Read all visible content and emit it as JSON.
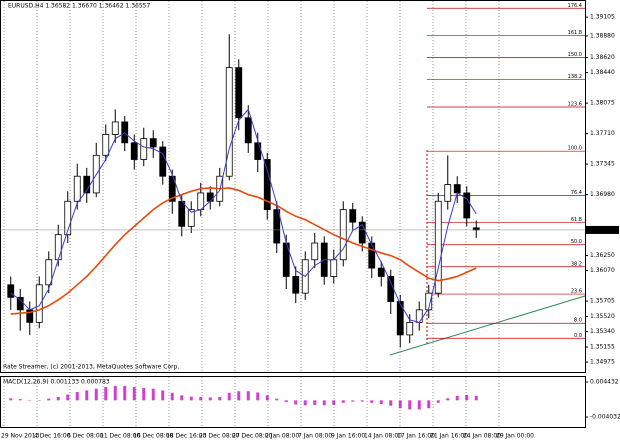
{
  "chart_data": [
    {
      "type": "candlestick",
      "title": "EURUSD,H4 1.36582 1.36670 1.36462 1.36557",
      "annotation": "Rate Streamer, (c) 2001-2013, MetaQuotes Software Corp.",
      "x_tick_labels": [
        "29 Nov 2013",
        "4 Dec 16:00",
        "6 Dec 08:00",
        "11 Dec 08:00",
        "16 Dec 08:00",
        "18 Dec 16:00",
        "23 Dec 08:00",
        "27 Dec 08:00",
        "2 Jan 08:00",
        "7 Jan 08:00",
        "9 Jan 16:00",
        "14 Jan 08:00",
        "17 Jan 16:00",
        "21 Jan 16:00",
        "24 Jan 08:00",
        "29 Jan 00:00"
      ],
      "open": [
        1.359,
        1.3575,
        1.356,
        1.3545,
        1.359,
        1.362,
        1.365,
        1.369,
        1.372,
        1.37,
        1.3745,
        1.377,
        1.3785,
        1.376,
        1.374,
        1.3765,
        1.3755,
        1.372,
        1.369,
        1.366,
        1.368,
        1.37,
        1.369,
        1.372,
        1.385,
        1.379,
        1.376,
        1.374,
        1.368,
        1.364,
        1.36,
        1.358,
        1.362,
        1.364,
        1.36,
        1.362,
        1.368,
        1.3665,
        1.364,
        1.361,
        1.36,
        1.357,
        1.353,
        1.3545,
        1.356,
        1.358,
        1.369,
        1.371,
        1.37,
        1.36582
      ],
      "high": [
        1.36,
        1.3585,
        1.357,
        1.36,
        1.363,
        1.3662,
        1.3702,
        1.3735,
        1.373,
        1.376,
        1.3782,
        1.38,
        1.3792,
        1.377,
        1.3778,
        1.3775,
        1.3762,
        1.3728,
        1.3698,
        1.369,
        1.3712,
        1.3708,
        1.373,
        1.389,
        1.386,
        1.3805,
        1.3772,
        1.3748,
        1.369,
        1.365,
        1.3612,
        1.363,
        1.3652,
        1.3648,
        1.3632,
        1.369,
        1.3688,
        1.3672,
        1.3648,
        1.3618,
        1.3608,
        1.3578,
        1.3555,
        1.357,
        1.359,
        1.37,
        1.3745,
        1.372,
        1.3708,
        1.3667
      ],
      "low": [
        1.356,
        1.3535,
        1.353,
        1.3538,
        1.358,
        1.3612,
        1.364,
        1.368,
        1.3688,
        1.3695,
        1.3738,
        1.376,
        1.375,
        1.3728,
        1.3732,
        1.3742,
        1.371,
        1.3675,
        1.3648,
        1.3652,
        1.3672,
        1.368,
        1.3684,
        1.3715,
        1.3775,
        1.3748,
        1.3725,
        1.3668,
        1.3628,
        1.3585,
        1.3568,
        1.3572,
        1.361,
        1.359,
        1.3592,
        1.3612,
        1.3655,
        1.363,
        1.3598,
        1.3588,
        1.3555,
        1.3515,
        1.352,
        1.3535,
        1.355,
        1.3575,
        1.368,
        1.3688,
        1.366,
        1.36462
      ],
      "close": [
        1.3575,
        1.356,
        1.3545,
        1.359,
        1.362,
        1.365,
        1.369,
        1.372,
        1.37,
        1.3745,
        1.377,
        1.3785,
        1.376,
        1.374,
        1.3765,
        1.3755,
        1.372,
        1.369,
        1.366,
        1.368,
        1.37,
        1.369,
        1.372,
        1.385,
        1.379,
        1.376,
        1.374,
        1.368,
        1.364,
        1.36,
        1.358,
        1.362,
        1.364,
        1.36,
        1.362,
        1.368,
        1.3665,
        1.364,
        1.361,
        1.36,
        1.357,
        1.353,
        1.3545,
        1.356,
        1.358,
        1.369,
        1.371,
        1.37,
        1.367,
        1.36557
      ],
      "ma": [
        {
          "color": "#e84a0c",
          "values": [
            1.3555,
            1.3556,
            1.3557,
            1.356,
            1.3565,
            1.3572,
            1.358,
            1.359,
            1.36,
            1.3612,
            1.3625,
            1.3638,
            1.365,
            1.366,
            1.367,
            1.368,
            1.3688,
            1.3694,
            1.3698,
            1.3702,
            1.3705,
            1.3706,
            1.3705,
            1.3706,
            1.3703,
            1.3698,
            1.3695,
            1.369,
            1.3685,
            1.3678,
            1.3672,
            1.3668,
            1.3662,
            1.3656,
            1.365,
            1.3645,
            1.364,
            1.3636,
            1.3632,
            1.3628,
            1.3625,
            1.362,
            1.3612,
            1.3605,
            1.3598,
            1.3595,
            1.3597,
            1.36,
            1.3605,
            1.361
          ]
        },
        {
          "color": "#3c3cc8",
          "values": [
            1.358,
            1.3572,
            1.356,
            1.3565,
            1.3585,
            1.362,
            1.3655,
            1.3688,
            1.3703,
            1.3722,
            1.374,
            1.3765,
            1.3772,
            1.3762,
            1.3755,
            1.3753,
            1.3747,
            1.3722,
            1.369,
            1.3677,
            1.368,
            1.369,
            1.3703,
            1.3753,
            1.3787,
            1.38,
            1.3763,
            1.3727,
            1.3687,
            1.364,
            1.3607,
            1.36,
            1.3613,
            1.362,
            1.362,
            1.3633,
            1.3655,
            1.3662,
            1.3638,
            1.3617,
            1.3593,
            1.3567,
            1.3548,
            1.3545,
            1.3562,
            1.361,
            1.366,
            1.37,
            1.3693,
            1.3675
          ]
        }
      ],
      "fib_color": "#c00000",
      "fib_levels": [
        {
          "label": "0.0",
          "value": 1.3526
        },
        {
          "label": "8.0",
          "value": 1.3544
        },
        {
          "label": "23.6",
          "value": 1.35789
        },
        {
          "label": "38.2",
          "value": 1.36116
        },
        {
          "label": "50.0",
          "value": 1.3638
        },
        {
          "label": "61.8",
          "value": 1.36644
        },
        {
          "label": "76.4",
          "value": 1.36971
        },
        {
          "label": "100.0",
          "value": 1.375
        },
        {
          "label": "123.6",
          "value": 1.38029
        },
        {
          "label": "138.2",
          "value": 1.38356
        },
        {
          "label": "150.0",
          "value": 1.3862
        },
        {
          "label": "161.8",
          "value": 1.38884
        },
        {
          "label": "176.4",
          "value": 1.39211
        }
      ],
      "ylim": [
        1.3488,
        1.3925
      ],
      "yticks": [
        {
          "value": 1.34975,
          "label": "1.34975"
        },
        {
          "value": 1.35155,
          "label": "1.35155"
        },
        {
          "value": 1.3534,
          "label": "1.35340"
        },
        {
          "value": 1.3552,
          "label": "1.35520"
        },
        {
          "value": 1.35705,
          "label": "1.35705"
        },
        {
          "value": 1.3607,
          "label": "1.36070"
        },
        {
          "value": 1.3625,
          "label": "1.36250"
        },
        {
          "value": 1.3698,
          "label": "1.36980"
        },
        {
          "value": 1.37345,
          "label": "1.37345"
        },
        {
          "value": 1.3771,
          "label": "1.37710"
        },
        {
          "value": 1.38075,
          "label": "1.38075"
        },
        {
          "value": 1.3844,
          "label": "1.38440"
        },
        {
          "value": 1.3862,
          "label": "1.38620"
        },
        {
          "value": 1.3888,
          "label": "1.38880"
        },
        {
          "value": 1.39105,
          "label": "1.39105"
        }
      ]
    },
    {
      "type": "bar",
      "title": "MACD(12,26,9) 0.001133 0.000783",
      "color": "#c000c0",
      "values": [
        0.0005,
        0.0003,
        0.0001,
        0.0001,
        0.0004,
        0.0008,
        0.0014,
        0.002,
        0.0024,
        0.0028,
        0.0032,
        0.0035,
        0.0035,
        0.0032,
        0.003,
        0.0028,
        0.0024,
        0.0018,
        0.0012,
        0.0009,
        0.0008,
        0.0007,
        0.0008,
        0.0018,
        0.0022,
        0.0022,
        0.0019,
        0.0012,
        0.0004,
        -0.0004,
        -0.001,
        -0.0012,
        -0.0011,
        -0.0012,
        -0.0011,
        -0.0006,
        -0.0003,
        -0.0003,
        -0.0006,
        -0.0009,
        -0.0013,
        -0.0019,
        -0.0022,
        -0.0022,
        -0.0019,
        -0.0006,
        0.0005,
        0.0011,
        0.0013,
        0.0011
      ],
      "ylim": [
        -0.0062,
        0.0054
      ],
      "yticks": [
        0.004432,
        -0.004032
      ]
    }
  ]
}
